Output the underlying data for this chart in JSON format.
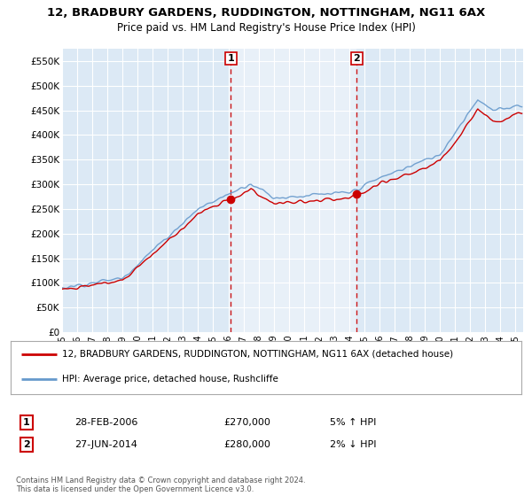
{
  "title_line1": "12, BRADBURY GARDENS, RUDDINGTON, NOTTINGHAM, NG11 6AX",
  "title_line2": "Price paid vs. HM Land Registry's House Price Index (HPI)",
  "legend_line1": "12, BRADBURY GARDENS, RUDDINGTON, NOTTINGHAM, NG11 6AX (detached house)",
  "legend_line2": "HPI: Average price, detached house, Rushcliffe",
  "sale1_date": "28-FEB-2006",
  "sale1_price": "£270,000",
  "sale1_hpi": "5% ↑ HPI",
  "sale1_year": 2006.17,
  "sale1_value": 270000,
  "sale2_date": "27-JUN-2014",
  "sale2_price": "£280,000",
  "sale2_hpi": "2% ↓ HPI",
  "sale2_year": 2014.5,
  "sale2_value": 280000,
  "ylim": [
    0,
    575000
  ],
  "xlim_start": 1995,
  "xlim_end": 2025.5,
  "red_color": "#cc0000",
  "blue_color": "#6699cc",
  "plot_bg_color": "#dce9f5",
  "highlight_bg_color": "#e8f0f8",
  "grid_color": "#ffffff",
  "footer": "Contains HM Land Registry data © Crown copyright and database right 2024.\nThis data is licensed under the Open Government Licence v3.0.",
  "yticks": [
    0,
    50000,
    100000,
    150000,
    200000,
    250000,
    300000,
    350000,
    400000,
    450000,
    500000,
    550000
  ],
  "ytick_labels": [
    "£0",
    "£50K",
    "£100K",
    "£150K",
    "£200K",
    "£250K",
    "£300K",
    "£350K",
    "£400K",
    "£450K",
    "£500K",
    "£550K"
  ]
}
